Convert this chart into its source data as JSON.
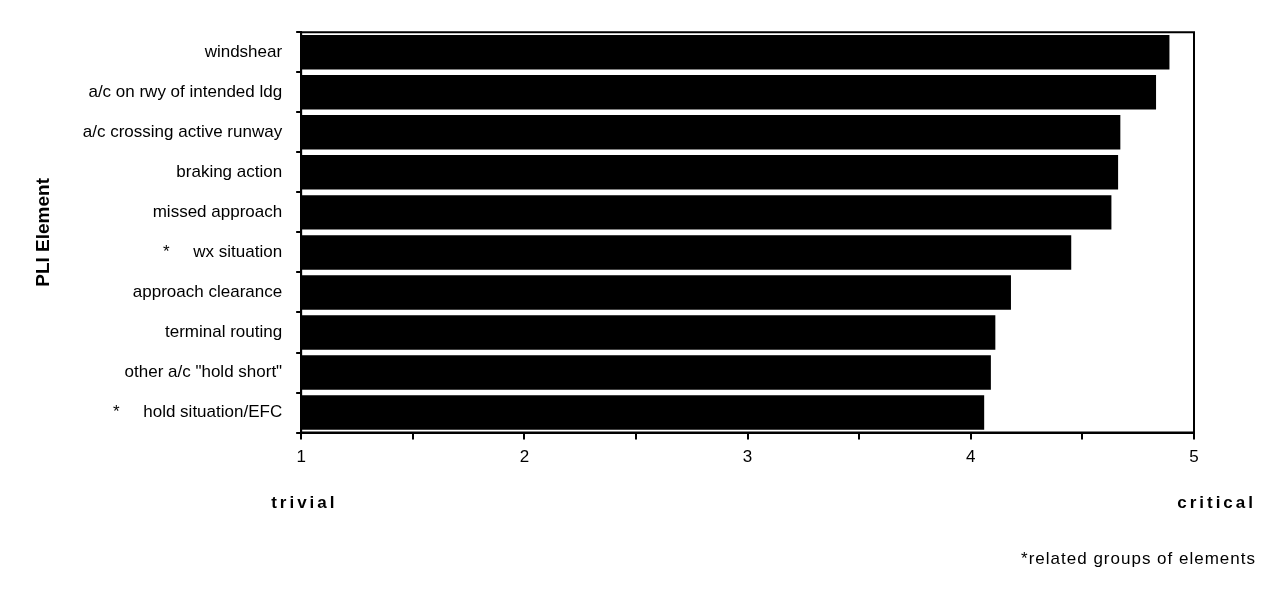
{
  "chart_data": {
    "type": "bar",
    "orientation": "horizontal",
    "ylabel": "PLI Element",
    "categories": [
      "windshear",
      "a/c on rwy of intended ldg",
      "a/c crossing active runway",
      "braking action",
      "missed approach",
      "*     wx situation",
      "approach clearance",
      "terminal routing",
      "other a/c \"hold short\"",
      "*     hold situation/EFC"
    ],
    "values": [
      4.89,
      4.83,
      4.67,
      4.66,
      4.63,
      4.45,
      4.18,
      4.11,
      4.09,
      4.06
    ],
    "color": "#000000",
    "xlim": [
      1,
      5
    ],
    "xticks": [
      1,
      {
        "value": 1.5,
        "label": null
      },
      2,
      {
        "value": 2.5,
        "label": null
      },
      3,
      {
        "value": 3.5,
        "label": null
      },
      4,
      {
        "value": 4.5,
        "label": null
      },
      5
    ],
    "annotations": [
      "trivial",
      "critical",
      "*related groups of elements"
    ],
    "grid": false,
    "legend": false
  }
}
